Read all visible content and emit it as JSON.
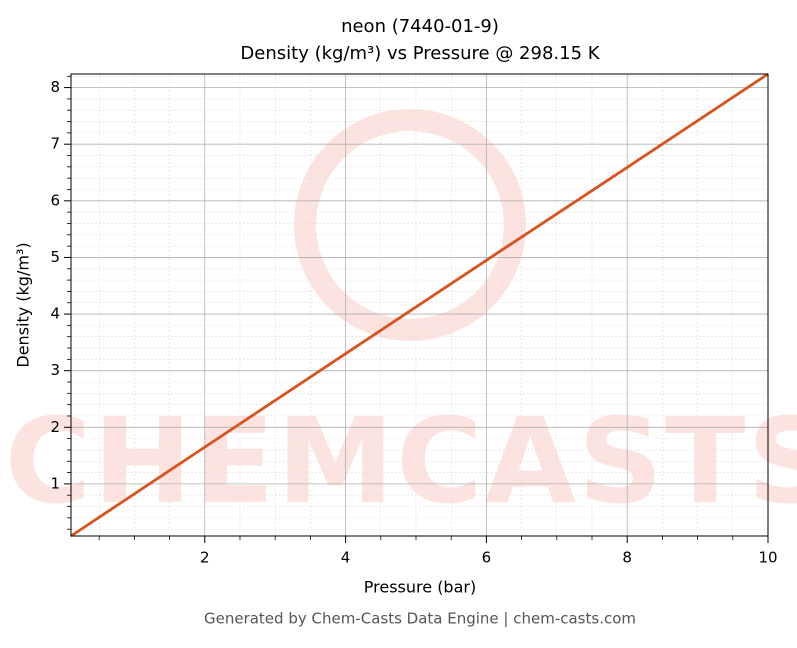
{
  "chart_data": {
    "type": "line",
    "title": "neon (7440-01-9)",
    "subtitle": "Density (kg/m³) vs Pressure @ 298.15 K",
    "x_label": "Pressure (bar)",
    "y_label": "Density (kg/m³)",
    "watermark": "CHEMCASTS",
    "footer": "Generated by Chem-Casts Data Engine | chem-casts.com",
    "x": [
      0.1,
      2,
      4,
      6,
      8,
      10
    ],
    "series": [
      {
        "name": "Density",
        "color": "#d9531e",
        "values": [
          0.08,
          1.65,
          3.3,
          4.95,
          6.59,
          8.24
        ]
      }
    ],
    "xlim": [
      0.1,
      10
    ],
    "ylim": [
      0.08,
      8.24
    ],
    "xticks": [
      2,
      4,
      6,
      8,
      10
    ],
    "yticks": [
      1,
      2,
      3,
      4,
      5,
      6,
      7,
      8
    ],
    "xminorticks": [
      0.5,
      1,
      1.5,
      2.5,
      3,
      3.5,
      4.5,
      5,
      5.5,
      6.5,
      7,
      7.5,
      8.5,
      9,
      9.5
    ],
    "yminorticks": [
      0.2,
      0.4,
      0.6,
      0.8,
      1.2,
      1.4,
      1.6,
      1.8,
      2.2,
      2.4,
      2.6,
      2.8,
      3.2,
      3.4,
      3.6,
      3.8,
      4.2,
      4.4,
      4.6,
      4.8,
      5.2,
      5.4,
      5.6,
      5.8,
      6.2,
      6.4,
      6.6,
      6.8,
      7.2,
      7.4,
      7.6,
      7.8,
      8.2
    ],
    "grid": true
  }
}
